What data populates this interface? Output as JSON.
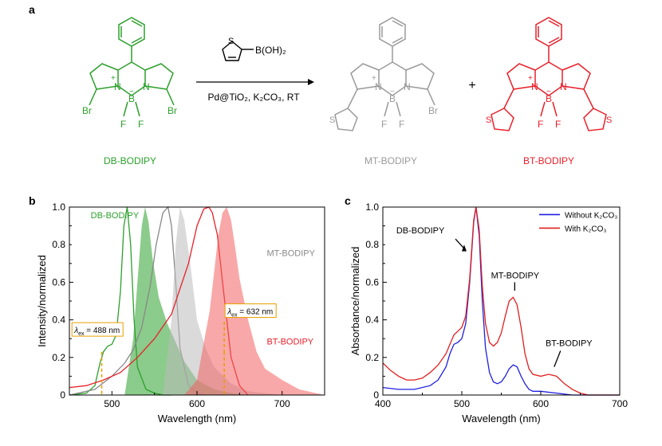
{
  "panels": {
    "a": "a",
    "b": "b",
    "c": "c"
  },
  "scheme": {
    "reactant_label": "DB-BODIPY",
    "product1_label": "MT-BODIPY",
    "product2_label": "BT-BODIPY",
    "plus": "+",
    "reagent_formula": "B(OH)₂",
    "reagent_S": "S",
    "conditions": "Pd@TiO₂, K₂CO₃, RT",
    "atoms": {
      "N": "N",
      "B": "B",
      "F": "F",
      "Br": "Br",
      "S": "S",
      "plus": "+",
      "minus": "−"
    },
    "colors": {
      "db": "#2ca02c",
      "mt": "#9a9a9a",
      "bt": "#e8202a"
    }
  },
  "chart_data": [
    {
      "type": "line",
      "panel": "b",
      "xlabel": "Wavelength (nm)",
      "ylabel": "Intensity/normalized",
      "xlim": [
        450,
        750
      ],
      "ylim": [
        0,
        1.0
      ],
      "xticks": [
        500,
        600,
        700
      ],
      "yticks": [
        0,
        0.2,
        0.4,
        0.6,
        0.8,
        1.0
      ],
      "series": [
        {
          "name": "DB-BODIPY",
          "kind": "absorption",
          "color": "#2ca02c",
          "x": [
            450,
            470,
            480,
            486,
            490,
            495,
            500,
            505,
            510,
            514,
            518,
            522,
            526,
            530,
            540,
            550,
            560,
            570
          ],
          "y": [
            0.0,
            0.01,
            0.05,
            0.17,
            0.23,
            0.26,
            0.27,
            0.32,
            0.55,
            0.9,
            1.0,
            0.8,
            0.4,
            0.15,
            0.03,
            0.01,
            0.0,
            0.0
          ]
        },
        {
          "name": "DB-BODIPY",
          "kind": "emission",
          "color": "#2ca02c",
          "x": [
            515,
            525,
            530,
            535,
            539,
            543,
            548,
            555,
            565,
            575,
            585,
            600,
            620,
            640,
            660
          ],
          "y": [
            0.0,
            0.3,
            0.6,
            0.9,
            1.0,
            0.92,
            0.72,
            0.52,
            0.38,
            0.28,
            0.18,
            0.08,
            0.03,
            0.01,
            0.0
          ]
        },
        {
          "name": "MT-BODIPY",
          "kind": "absorption",
          "color": "#888888",
          "x": [
            450,
            480,
            500,
            515,
            525,
            535,
            545,
            552,
            560,
            566,
            570,
            575,
            580,
            590,
            600,
            610
          ],
          "y": [
            0.0,
            0.03,
            0.1,
            0.17,
            0.24,
            0.36,
            0.58,
            0.8,
            0.97,
            1.0,
            0.9,
            0.6,
            0.25,
            0.05,
            0.01,
            0.0
          ]
        },
        {
          "name": "MT-BODIPY",
          "kind": "emission",
          "color": "#bbbbbb",
          "x": [
            560,
            570,
            575,
            580,
            585,
            592,
            600,
            610,
            620,
            640,
            660,
            680,
            700
          ],
          "y": [
            0.0,
            0.4,
            0.8,
            1.0,
            0.93,
            0.7,
            0.4,
            0.25,
            0.15,
            0.06,
            0.02,
            0.01,
            0.0
          ]
        },
        {
          "name": "BT-BODIPY",
          "kind": "absorption",
          "color": "#e8202a",
          "x": [
            450,
            470,
            490,
            510,
            530,
            550,
            570,
            590,
            600,
            608,
            614,
            618,
            624,
            630,
            640,
            650,
            660
          ],
          "y": [
            0.04,
            0.05,
            0.08,
            0.12,
            0.2,
            0.3,
            0.43,
            0.7,
            0.9,
            0.99,
            1.0,
            0.97,
            0.85,
            0.6,
            0.2,
            0.05,
            0.0
          ]
        },
        {
          "name": "BT-BODIPY",
          "kind": "emission",
          "color": "#f26060",
          "x": [
            585,
            600,
            615,
            625,
            630,
            635,
            640,
            645,
            650,
            660,
            670,
            680,
            690,
            700,
            720,
            740,
            750
          ],
          "y": [
            0.0,
            0.08,
            0.45,
            0.85,
            0.97,
            1.0,
            0.93,
            0.78,
            0.62,
            0.4,
            0.23,
            0.14,
            0.11,
            0.08,
            0.03,
            0.01,
            0.0
          ]
        }
      ],
      "annotations": {
        "db": "DB-BODIPY",
        "mt": "MT-BODIPY",
        "bt": "BT-BODIPY",
        "ex1": "= 488 nm",
        "ex2": "= 632 nm",
        "ex_symbol": "λ",
        "ex_sub": "ex",
        "ex1_nm": 488,
        "ex2_nm": 632
      }
    },
    {
      "type": "line",
      "panel": "c",
      "xlabel": "Wavelength (nm)",
      "ylabel": "Absorbance/normalized",
      "xlim": [
        400,
        700
      ],
      "ylim": [
        0,
        1.0
      ],
      "xticks": [
        400,
        500,
        600,
        700
      ],
      "yticks": [
        0,
        0.2,
        0.4,
        0.6,
        0.8,
        1.0
      ],
      "series": [
        {
          "name": "Without K₂CO₃",
          "color": "#1f1fe0",
          "x": [
            400,
            420,
            440,
            460,
            470,
            480,
            485,
            490,
            495,
            500,
            505,
            510,
            515,
            518,
            522,
            526,
            530,
            535,
            540,
            545,
            550,
            555,
            560,
            565,
            570,
            575,
            580,
            585,
            590,
            600,
            620,
            640,
            660,
            680,
            700
          ],
          "y": [
            0.04,
            0.03,
            0.03,
            0.05,
            0.08,
            0.15,
            0.22,
            0.27,
            0.28,
            0.3,
            0.38,
            0.6,
            0.92,
            1.0,
            0.85,
            0.5,
            0.25,
            0.12,
            0.07,
            0.06,
            0.07,
            0.1,
            0.14,
            0.16,
            0.15,
            0.1,
            0.06,
            0.03,
            0.02,
            0.02,
            0.01,
            0.0,
            0.0,
            0.0,
            0.0
          ]
        },
        {
          "name": "With K₂CO₃",
          "color": "#e01f1f",
          "x": [
            400,
            410,
            420,
            430,
            440,
            450,
            460,
            470,
            480,
            485,
            490,
            495,
            500,
            505,
            510,
            515,
            518,
            522,
            526,
            530,
            535,
            540,
            545,
            550,
            555,
            560,
            565,
            570,
            575,
            580,
            585,
            590,
            600,
            610,
            620,
            630,
            640,
            650,
            660,
            680,
            700
          ],
          "y": [
            0.17,
            0.13,
            0.1,
            0.08,
            0.08,
            0.09,
            0.12,
            0.16,
            0.22,
            0.27,
            0.32,
            0.34,
            0.36,
            0.42,
            0.62,
            0.93,
            1.0,
            0.88,
            0.58,
            0.38,
            0.28,
            0.26,
            0.28,
            0.33,
            0.42,
            0.5,
            0.52,
            0.48,
            0.36,
            0.22,
            0.14,
            0.11,
            0.1,
            0.11,
            0.1,
            0.06,
            0.03,
            0.01,
            0.0,
            0.0,
            0.0
          ]
        }
      ],
      "annotations": {
        "db": "DB-BODIPY",
        "mt": "MT-BODIPY",
        "bt": "BT-BODIPY"
      },
      "legend": {
        "placement": "top-right",
        "entries": [
          "Without K₂CO₃",
          "With K₂CO₃"
        ]
      }
    }
  ]
}
